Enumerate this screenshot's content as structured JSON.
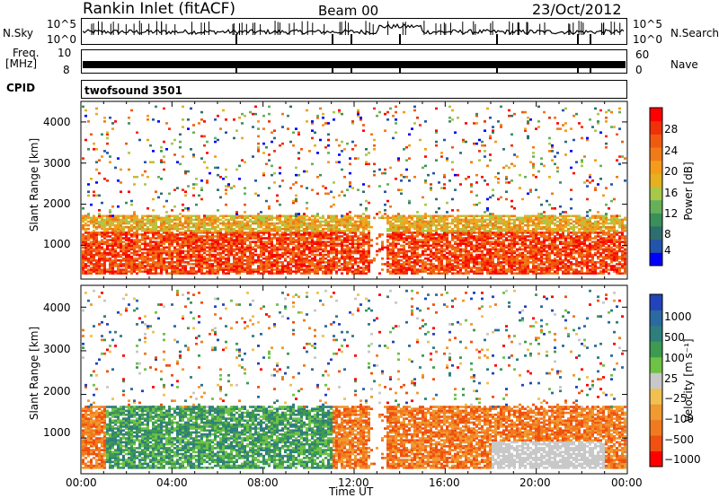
{
  "header": {
    "station": "Rankin Inlet (fitACF)",
    "beam": "Beam 00",
    "date": "23/Oct/2012"
  },
  "status_rows": {
    "nsky_label": "N.Sky",
    "nsky_ticks": [
      "10^5",
      "10^0"
    ],
    "nsearch_label": "N.Search",
    "nsearch_ticks": [
      "10^5",
      "10^0"
    ],
    "freq_label_1": "Freq.",
    "freq_label_2": "[MHz]",
    "freq_ticks": [
      "10",
      "8"
    ],
    "nave_label": "Nave",
    "nave_ticks": [
      "60",
      "0"
    ],
    "cpid_label": "CPID",
    "cpid_value": "twofsound 3501"
  },
  "colors": {
    "power_scale": [
      "#0000ff",
      "#2255aa",
      "#2f6e6e",
      "#3a8f5a",
      "#66b05a",
      "#a8c84a",
      "#e6b020",
      "#f59a1a",
      "#f07a18",
      "#f05a10",
      "#f03008",
      "#ff0000"
    ],
    "velocity_scale": [
      "#2244bb",
      "#2a6aa0",
      "#2f7e7e",
      "#3e9a50",
      "#6ec246",
      "#c8c8c8",
      "#f0c050",
      "#f09a30",
      "#f07a20",
      "#f05010",
      "#ff0000"
    ]
  },
  "chart_data": [
    {
      "type": "heatmap",
      "name": "power",
      "ylabel": "Slant Range [km]",
      "yticks": [
        "1000",
        "2000",
        "3000",
        "4000"
      ],
      "ylim": [
        180,
        4500
      ],
      "xlim": [
        "00:00",
        "24:00"
      ],
      "colorbar_label": "Power [dB]",
      "colorbar_ticks": [
        "28",
        "24",
        "20",
        "16",
        "12",
        "8",
        "4"
      ],
      "colorbar_range": [
        0,
        30
      ]
    },
    {
      "type": "heatmap",
      "name": "velocity",
      "ylabel": "Slant Range [km]",
      "yticks": [
        "1000",
        "2000",
        "3000",
        "4000"
      ],
      "ylim": [
        180,
        4500
      ],
      "xlim": [
        "00:00",
        "24:00"
      ],
      "xlabel": "Time UT",
      "xticks": [
        "00:00",
        "04:00",
        "08:00",
        "12:00",
        "16:00",
        "20:00",
        "00:00"
      ],
      "colorbar_label": "Velocity [m s⁻¹]",
      "colorbar_ticks": [
        "1000",
        "500",
        "100",
        "25",
        "−25",
        "−100",
        "−500",
        "−1000"
      ]
    }
  ]
}
